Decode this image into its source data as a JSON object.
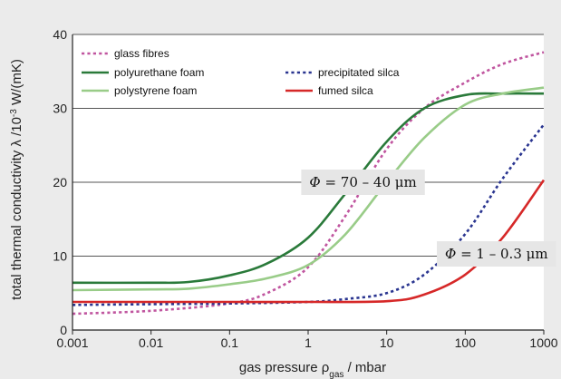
{
  "chart_data": {
    "type": "line",
    "xscale": "log",
    "xlim": [
      0.001,
      1000
    ],
    "ylim": [
      0,
      40
    ],
    "xticks": [
      {
        "value": 0.001,
        "label": "0.001"
      },
      {
        "value": 0.01,
        "label": "0.01"
      },
      {
        "value": 0.1,
        "label": "0.1"
      },
      {
        "value": 1,
        "label": "1"
      },
      {
        "value": 10,
        "label": "10"
      },
      {
        "value": 100,
        "label": "100"
      },
      {
        "value": 1000,
        "label": "1000"
      }
    ],
    "yticks": [
      {
        "value": 0,
        "label": "0"
      },
      {
        "value": 10,
        "label": "10"
      },
      {
        "value": 20,
        "label": "20"
      },
      {
        "value": 30,
        "label": "30"
      },
      {
        "value": 40,
        "label": "40"
      }
    ],
    "grid": "horizontal",
    "xlabel": {
      "prefix": "gas pressure ρ",
      "sub": "gas",
      "suffix": " / mbar"
    },
    "ylabel": {
      "prefix": "total thermal conductivity λ /10",
      "sup": "-3",
      "suffix": " W/(mK)"
    },
    "legend_position": "top-left",
    "series": [
      {
        "name": "glass fibres",
        "color": "#c0559f",
        "dash": "dotted",
        "x": [
          0.001,
          0.01,
          0.1,
          0.3,
          1,
          3,
          10,
          30,
          100,
          300,
          1000
        ],
        "y": [
          2.2,
          2.6,
          3.6,
          5.0,
          8.5,
          15.5,
          24.5,
          30.0,
          33.5,
          36.0,
          37.6
        ]
      },
      {
        "name": "polyurethane foam",
        "color": "#2a7a3a",
        "dash": "solid",
        "x": [
          0.001,
          0.01,
          0.03,
          0.1,
          0.3,
          1,
          3,
          10,
          30,
          100,
          300,
          1000
        ],
        "y": [
          6.4,
          6.4,
          6.5,
          7.4,
          9.0,
          12.5,
          18.5,
          25.5,
          30.0,
          31.8,
          32.0,
          32.0
        ]
      },
      {
        "name": "precipitated silca",
        "color": "#2a3590",
        "dash": "dotted",
        "x": [
          0.001,
          0.01,
          0.1,
          1,
          3,
          10,
          30,
          100,
          300,
          1000
        ],
        "y": [
          3.4,
          3.5,
          3.6,
          3.8,
          4.2,
          5.0,
          7.5,
          13.0,
          20.5,
          27.8
        ]
      },
      {
        "name": "polystyrene foam",
        "color": "#99cc88",
        "dash": "solid",
        "x": [
          0.001,
          0.01,
          0.03,
          0.1,
          0.3,
          1,
          3,
          10,
          30,
          100,
          300,
          1000
        ],
        "y": [
          5.4,
          5.5,
          5.6,
          6.2,
          7.0,
          8.8,
          13.0,
          20.0,
          26.0,
          30.5,
          32.0,
          32.8
        ]
      },
      {
        "name": "fumed silca",
        "color": "#d62828",
        "dash": "solid",
        "x": [
          0.001,
          0.01,
          0.1,
          1,
          10,
          30,
          100,
          300,
          1000
        ],
        "y": [
          3.8,
          3.8,
          3.8,
          3.8,
          3.9,
          4.8,
          7.5,
          12.5,
          20.3
        ]
      }
    ],
    "annotations": [
      {
        "symbol": "Φ",
        "text": " = 70 – 40 μm",
        "x": 5,
        "y": 20
      },
      {
        "symbol": "Φ",
        "text": " = 1 – 0.3 μm",
        "x": 250,
        "y": 10.3
      }
    ]
  }
}
